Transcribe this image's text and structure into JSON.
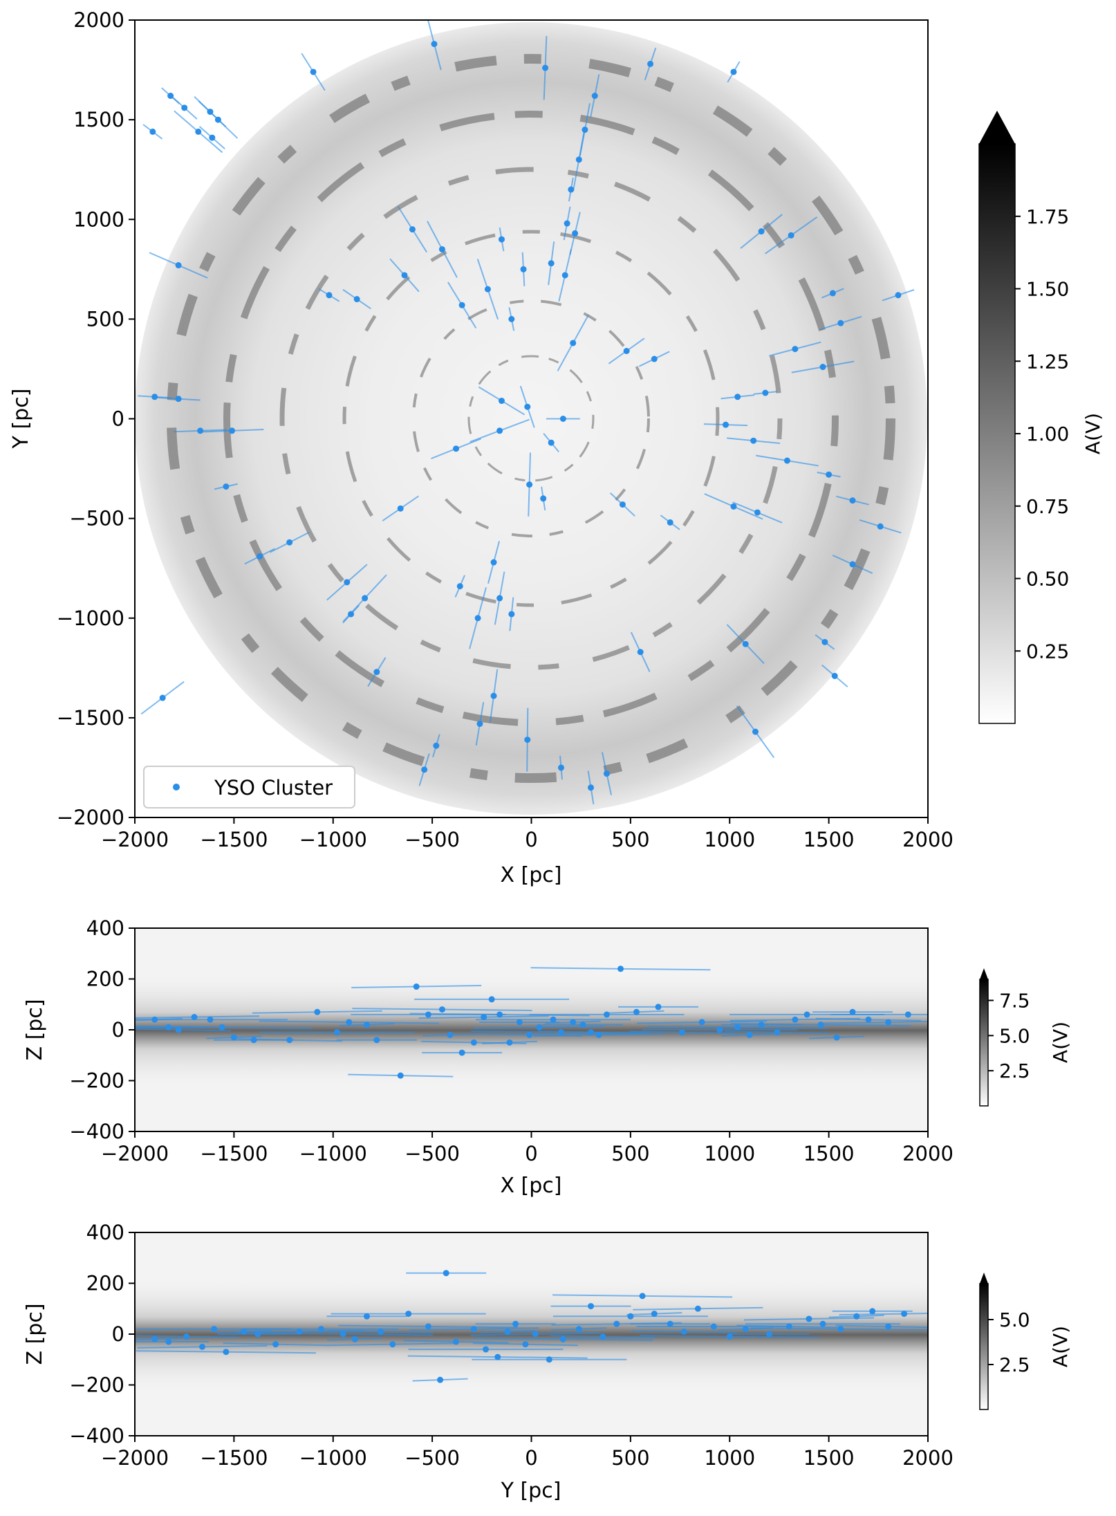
{
  "chart_data": [
    {
      "type": "scatter",
      "panel": "top-down X-Y map",
      "xlabel": "X [pc]",
      "ylabel": "Y [pc]",
      "xlim": [
        -2000,
        2000
      ],
      "ylim": [
        -2000,
        2000
      ],
      "xticks": [
        "−2000",
        "−1500",
        "−1000",
        "−500",
        "0",
        "500",
        "1000",
        "1500",
        "2000"
      ],
      "yticks": [
        "−2000",
        "−1500",
        "−1000",
        "−500",
        "0",
        "500",
        "1000",
        "1500",
        "2000"
      ],
      "background": "dust extinction map (greyscale), circular, radius 2000 pc",
      "colorbar": {
        "label": "A(V)",
        "ticks": [
          "0.25",
          "0.50",
          "0.75",
          "1.00",
          "1.25",
          "1.50",
          "1.75"
        ],
        "tick_values": [
          0.25,
          0.5,
          0.75,
          1.0,
          1.25,
          1.5,
          1.75
        ],
        "range": [
          0,
          2.0
        ],
        "extend": "max"
      },
      "legend": {
        "label": "YSO Cluster",
        "placement": "lower-left"
      },
      "series": [
        {
          "name": "YSO Cluster",
          "color": "#2a8ee8",
          "points": [
            [
              -1820,
              1620
            ],
            [
              -1750,
              1560
            ],
            [
              -1620,
              1540
            ],
            [
              -1580,
              1500
            ],
            [
              -1680,
              1440
            ],
            [
              -1910,
              1440
            ],
            [
              -1610,
              1410
            ],
            [
              -1100,
              1740
            ],
            [
              -490,
              1880
            ],
            [
              70,
              1760
            ],
            [
              1020,
              1740
            ],
            [
              600,
              1780
            ],
            [
              320,
              1620
            ],
            [
              270,
              1450
            ],
            [
              240,
              1300
            ],
            [
              200,
              1150
            ],
            [
              180,
              980
            ],
            [
              220,
              930
            ],
            [
              -600,
              950
            ],
            [
              -450,
              850
            ],
            [
              -150,
              900
            ],
            [
              -40,
              750
            ],
            [
              100,
              780
            ],
            [
              170,
              720
            ],
            [
              -1780,
              770
            ],
            [
              -1020,
              620
            ],
            [
              -880,
              600
            ],
            [
              -640,
              720
            ],
            [
              -350,
              570
            ],
            [
              -220,
              650
            ],
            [
              -100,
              500
            ],
            [
              620,
              300
            ],
            [
              480,
              340
            ],
            [
              1160,
              940
            ],
            [
              1310,
              920
            ],
            [
              1520,
              630
            ],
            [
              1850,
              620
            ],
            [
              1560,
              480
            ],
            [
              1330,
              350
            ],
            [
              1470,
              260
            ],
            [
              1180,
              130
            ],
            [
              1040,
              110
            ],
            [
              980,
              -30
            ],
            [
              1120,
              -110
            ],
            [
              1290,
              -210
            ],
            [
              1500,
              -280
            ],
            [
              1620,
              -410
            ],
            [
              1760,
              -540
            ],
            [
              1140,
              -470
            ],
            [
              1020,
              -440
            ],
            [
              700,
              -520
            ],
            [
              -1900,
              110
            ],
            [
              -1780,
              100
            ],
            [
              -1670,
              -60
            ],
            [
              -1510,
              -60
            ],
            [
              -1540,
              -340
            ],
            [
              -1370,
              -690
            ],
            [
              -1220,
              -620
            ],
            [
              -930,
              -820
            ],
            [
              -840,
              -900
            ],
            [
              -910,
              -980
            ],
            [
              -780,
              -1270
            ],
            [
              -660,
              -450
            ],
            [
              -380,
              -150
            ],
            [
              -160,
              -60
            ],
            [
              100,
              -120
            ],
            [
              160,
              0
            ],
            [
              -20,
              60
            ],
            [
              -150,
              90
            ],
            [
              210,
              380
            ],
            [
              -480,
              -1640
            ],
            [
              -540,
              -1760
            ],
            [
              -260,
              -1530
            ],
            [
              -190,
              -1390
            ],
            [
              -20,
              -1610
            ],
            [
              150,
              -1750
            ],
            [
              300,
              -1850
            ],
            [
              380,
              -1780
            ],
            [
              1080,
              -1130
            ],
            [
              1130,
              -1570
            ],
            [
              1480,
              -1120
            ],
            [
              1530,
              -1290
            ],
            [
              1620,
              -730
            ],
            [
              -1860,
              -1400
            ],
            [
              -270,
              -1000
            ],
            [
              -360,
              -840
            ],
            [
              -100,
              -980
            ],
            [
              -190,
              -720
            ],
            [
              -160,
              -900
            ],
            [
              -10,
              -330
            ],
            [
              60,
              -400
            ],
            [
              460,
              -430
            ],
            [
              550,
              -1170
            ]
          ]
        }
      ]
    },
    {
      "type": "scatter",
      "panel": "edge-on X-Z map",
      "xlabel": "X [pc]",
      "ylabel": "Z [pc]",
      "xlim": [
        -2000,
        2000
      ],
      "ylim": [
        -400,
        400
      ],
      "xticks": [
        "−2000",
        "−1500",
        "−1000",
        "−500",
        "0",
        "500",
        "1000",
        "1500",
        "2000"
      ],
      "yticks": [
        "−400",
        "−200",
        "0",
        "200",
        "400"
      ],
      "colorbar": {
        "label": "A(V)",
        "ticks": [
          "2.5",
          "5.0",
          "7.5"
        ],
        "tick_values": [
          2.5,
          5.0,
          7.5
        ],
        "range": [
          0,
          9.0
        ],
        "extend": "max"
      },
      "series": [
        {
          "name": "YSO Cluster",
          "color": "#2a8ee8",
          "points": [
            [
              -1900,
              40
            ],
            [
              -1830,
              10
            ],
            [
              -1780,
              0
            ],
            [
              -1700,
              50
            ],
            [
              -1620,
              40
            ],
            [
              -1560,
              10
            ],
            [
              -1500,
              -30
            ],
            [
              -1400,
              -40
            ],
            [
              -1220,
              -40
            ],
            [
              -1080,
              70
            ],
            [
              -980,
              -10
            ],
            [
              -920,
              30
            ],
            [
              -830,
              20
            ],
            [
              -780,
              -40
            ],
            [
              -660,
              -180
            ],
            [
              -580,
              170
            ],
            [
              -520,
              60
            ],
            [
              -450,
              80
            ],
            [
              -410,
              -20
            ],
            [
              -350,
              -90
            ],
            [
              -290,
              -50
            ],
            [
              -240,
              50
            ],
            [
              -200,
              120
            ],
            [
              -160,
              60
            ],
            [
              -110,
              -50
            ],
            [
              -60,
              30
            ],
            [
              -10,
              -20
            ],
            [
              40,
              10
            ],
            [
              110,
              40
            ],
            [
              150,
              -10
            ],
            [
              210,
              30
            ],
            [
              260,
              20
            ],
            [
              300,
              -10
            ],
            [
              340,
              -20
            ],
            [
              380,
              60
            ],
            [
              450,
              240
            ],
            [
              530,
              70
            ],
            [
              640,
              90
            ],
            [
              760,
              -10
            ],
            [
              860,
              30
            ],
            [
              950,
              0
            ],
            [
              1040,
              10
            ],
            [
              1100,
              -20
            ],
            [
              1160,
              20
            ],
            [
              1240,
              -10
            ],
            [
              1330,
              40
            ],
            [
              1390,
              60
            ],
            [
              1460,
              20
            ],
            [
              1540,
              -30
            ],
            [
              1620,
              70
            ],
            [
              1700,
              40
            ],
            [
              1800,
              30
            ],
            [
              1900,
              60
            ]
          ]
        }
      ]
    },
    {
      "type": "scatter",
      "panel": "edge-on Y-Z map",
      "xlabel": "Y [pc]",
      "ylabel": "Z [pc]",
      "xlim": [
        -2000,
        2000
      ],
      "ylim": [
        -400,
        400
      ],
      "xticks": [
        "−2000",
        "−1500",
        "−1000",
        "−500",
        "0",
        "500",
        "1000",
        "1500",
        "2000"
      ],
      "yticks": [
        "−400",
        "−200",
        "0",
        "200",
        "400"
      ],
      "colorbar": {
        "label": "A(V)",
        "ticks": [
          "2.5",
          "5.0"
        ],
        "tick_values": [
          2.5,
          5.0
        ],
        "range": [
          0,
          7.0
        ],
        "extend": "max"
      },
      "series": [
        {
          "name": "YSO Cluster",
          "color": "#2a8ee8",
          "points": [
            [
              -1900,
              -20
            ],
            [
              -1830,
              -30
            ],
            [
              -1740,
              -10
            ],
            [
              -1660,
              -50
            ],
            [
              -1600,
              20
            ],
            [
              -1540,
              -70
            ],
            [
              -1450,
              10
            ],
            [
              -1380,
              0
            ],
            [
              -1290,
              -40
            ],
            [
              -1170,
              10
            ],
            [
              -1060,
              20
            ],
            [
              -950,
              0
            ],
            [
              -890,
              -20
            ],
            [
              -830,
              70
            ],
            [
              -760,
              10
            ],
            [
              -700,
              -40
            ],
            [
              -620,
              80
            ],
            [
              -520,
              30
            ],
            [
              -460,
              -180
            ],
            [
              -430,
              240
            ],
            [
              -380,
              -30
            ],
            [
              -290,
              20
            ],
            [
              -230,
              -60
            ],
            [
              -170,
              -90
            ],
            [
              -120,
              10
            ],
            [
              -80,
              40
            ],
            [
              -30,
              -40
            ],
            [
              20,
              0
            ],
            [
              90,
              -100
            ],
            [
              160,
              -20
            ],
            [
              240,
              20
            ],
            [
              300,
              110
            ],
            [
              360,
              -10
            ],
            [
              430,
              40
            ],
            [
              500,
              70
            ],
            [
              560,
              150
            ],
            [
              620,
              80
            ],
            [
              700,
              40
            ],
            [
              770,
              10
            ],
            [
              840,
              100
            ],
            [
              920,
              30
            ],
            [
              1000,
              -10
            ],
            [
              1080,
              20
            ],
            [
              1200,
              0
            ],
            [
              1300,
              30
            ],
            [
              1400,
              60
            ],
            [
              1470,
              40
            ],
            [
              1560,
              20
            ],
            [
              1640,
              70
            ],
            [
              1720,
              90
            ],
            [
              1800,
              30
            ],
            [
              1880,
              80
            ]
          ]
        }
      ]
    }
  ]
}
